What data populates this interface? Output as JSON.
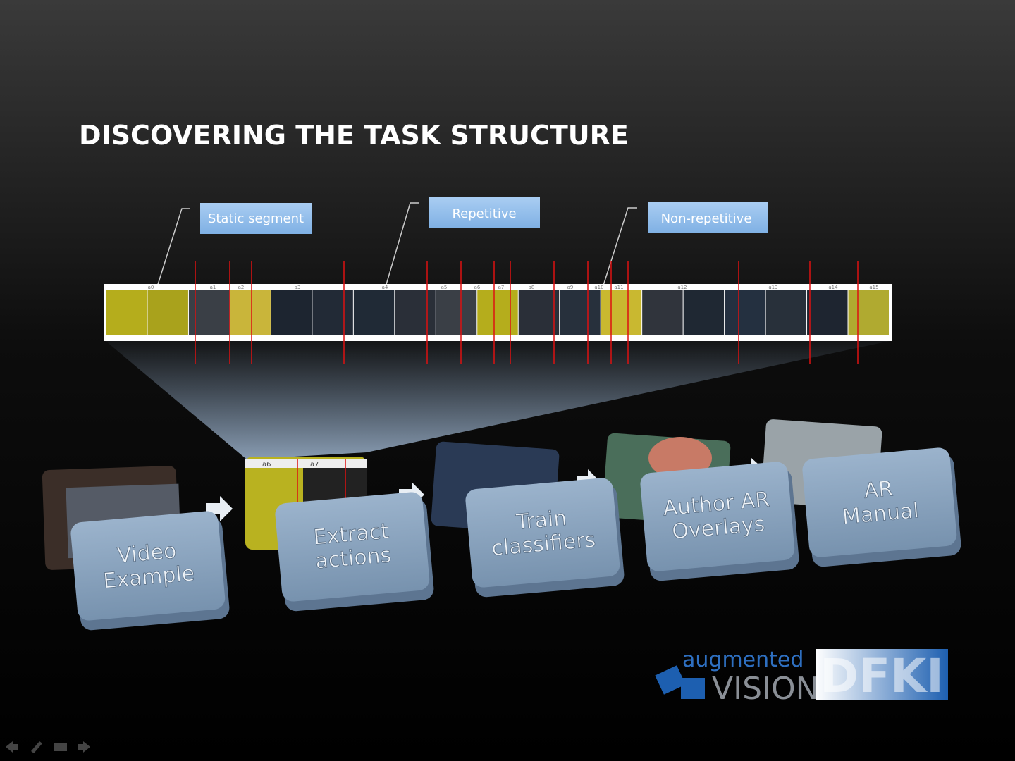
{
  "header": {
    "title": "DISCOVERING THE TASK STRUCTURE"
  },
  "callouts": [
    "Static segment",
    "Repetitive",
    "Non-repetitive"
  ],
  "segments": [
    "a0",
    "a1",
    "a2",
    "a3",
    "a4",
    "a5",
    "a6",
    "a7",
    "a8",
    "a9",
    "a10",
    "a11",
    "a12",
    "a13",
    "a14",
    "a15"
  ],
  "thumbnail_labels": [
    "a6",
    "a7"
  ],
  "steps": [
    {
      "lines": [
        "Video",
        "Example"
      ]
    },
    {
      "lines": [
        "Extract",
        "actions"
      ]
    },
    {
      "lines": [
        "Train",
        "classifiers"
      ]
    },
    {
      "lines": [
        "Author AR",
        "Overlays"
      ]
    },
    {
      "lines": [
        "AR",
        "Manual"
      ]
    }
  ],
  "logo": {
    "line1": "augmented",
    "line2": "VISION",
    "brand": "DFKI"
  }
}
